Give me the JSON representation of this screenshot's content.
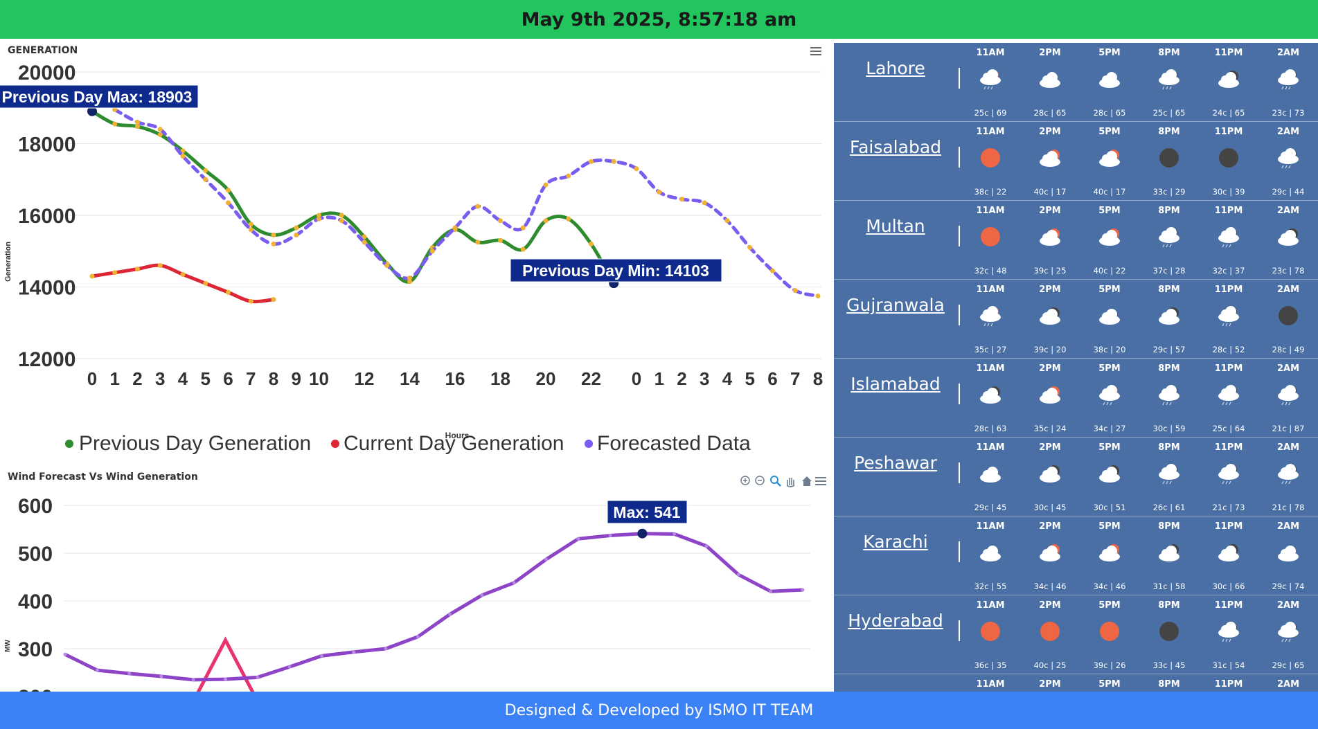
{
  "header": {
    "datetime": "May 9th 2025, 8:57:18 am"
  },
  "footer": {
    "text": "Designed & Developed by ISMO IT TEAM"
  },
  "generation_chart": {
    "title": "GENERATION",
    "ylabel": "Generation",
    "xlabel": "Hours",
    "legend": [
      "Previous Day Generation",
      "Current Day Generation",
      "Forecasted Data"
    ],
    "max_label": "Previous Day Max: 18903",
    "min_label": "Previous Day Min: 14103",
    "menu_icon": "hamburger-menu-icon"
  },
  "wind_chart": {
    "title": "Wind Forecast Vs Wind Generation",
    "ylabel": "MW",
    "max_label": "Max: 541",
    "toolbar_icons": [
      "zoom-in-icon",
      "zoom-out-icon",
      "selection-zoom-icon",
      "pan-icon",
      "home-reset-icon",
      "hamburger-menu-icon"
    ]
  },
  "chart_data": [
    {
      "type": "line",
      "title": "GENERATION",
      "xlabel": "Hours",
      "ylabel": "Generation",
      "ylim": [
        12000,
        20000
      ],
      "yticks": [
        20000,
        18000,
        16000,
        14000,
        12000
      ],
      "xticks": [
        "0",
        "1",
        "2",
        "3",
        "4",
        "5",
        "6",
        "7",
        "8",
        "9",
        "10",
        "12",
        "14",
        "16",
        "18",
        "20",
        "22",
        "0",
        "1",
        "2",
        "3",
        "4",
        "5",
        "6",
        "7",
        "8"
      ],
      "legend_position": "bottom",
      "series": [
        {
          "name": "Previous Day Generation",
          "color": "#2e8b2e",
          "dash": false,
          "x": [
            0,
            1,
            2,
            3,
            4,
            5,
            6,
            7,
            8,
            9,
            10,
            11,
            12,
            13,
            14,
            15,
            16,
            17,
            18,
            19,
            20,
            21,
            22,
            23
          ],
          "values": [
            18903,
            18550,
            18480,
            18250,
            17800,
            17250,
            16700,
            15750,
            15450,
            15650,
            16000,
            16000,
            15400,
            14650,
            14150,
            15100,
            15600,
            15250,
            15300,
            15050,
            15850,
            15900,
            15200,
            14103
          ]
        },
        {
          "name": "Current Day Generation",
          "color": "#dc2636",
          "dash": false,
          "x": [
            0,
            1,
            2,
            3,
            4,
            5,
            6,
            7,
            8
          ],
          "values": [
            14300,
            14400,
            14500,
            14600,
            14350,
            14100,
            13850,
            13600,
            13650
          ]
        },
        {
          "name": "Forecasted Data",
          "color": "#7b5cf0",
          "dash": true,
          "x": [
            1,
            2,
            3,
            4,
            5,
            6,
            7,
            8,
            9,
            10,
            11,
            12,
            13,
            14,
            15,
            16,
            17,
            18,
            19,
            20,
            21,
            22,
            23,
            24,
            25,
            26,
            27,
            28,
            29,
            30,
            31,
            32
          ],
          "values": [
            18950,
            18600,
            18400,
            17650,
            17000,
            16350,
            15600,
            15200,
            15450,
            15900,
            15850,
            15250,
            14600,
            14250,
            15000,
            15650,
            16250,
            15850,
            15650,
            16850,
            17100,
            17500,
            17500,
            17300,
            16650,
            16450,
            16350,
            15850,
            15100,
            14450,
            13900,
            13750
          ]
        }
      ],
      "annotations": [
        {
          "text": "Previous Day Max: 18903",
          "x": 0,
          "y": 18903
        },
        {
          "text": "Previous Day Min: 14103",
          "x": 23,
          "y": 14103
        }
      ]
    },
    {
      "type": "line",
      "title": "Wind Forecast Vs Wind Generation",
      "ylabel": "MW",
      "ylim": [
        200,
        600
      ],
      "yticks": [
        600,
        500,
        400,
        300,
        200
      ],
      "series": [
        {
          "name": "Wind Forecast",
          "color": "#8e44c7",
          "x": [
            0,
            1,
            2,
            3,
            4,
            5,
            6,
            7,
            8,
            9,
            10,
            11,
            12,
            13,
            14,
            15,
            16,
            17,
            18,
            19,
            20,
            21,
            22,
            23,
            24
          ],
          "values": [
            288,
            255,
            248,
            242,
            235,
            236,
            240,
            262,
            285,
            293,
            300,
            325,
            372,
            412,
            438,
            487,
            530,
            537,
            541,
            540,
            515,
            455,
            420,
            423,
            null
          ]
        },
        {
          "name": "Wind Generation",
          "color": "#e8336b",
          "x": [
            4,
            5,
            6
          ],
          "values": [
            190,
            318,
            190
          ]
        }
      ],
      "annotations": [
        {
          "text": "Max: 541",
          "x": 18,
          "y": 541
        }
      ]
    }
  ],
  "weather": {
    "slot_times": [
      "11AM",
      "2PM",
      "5PM",
      "8PM",
      "11PM",
      "2AM"
    ],
    "cities": [
      {
        "name": "Lahore",
        "slots": [
          {
            "icon": "rain-sun-icon",
            "val": "25c | 69"
          },
          {
            "icon": "cloud-icon",
            "val": "28c | 65"
          },
          {
            "icon": "cloud-icon",
            "val": "28c | 65"
          },
          {
            "icon": "rain-moon-icon",
            "val": "25c | 65"
          },
          {
            "icon": "cloud-moon-icon",
            "val": "24c | 65"
          },
          {
            "icon": "rain-moon-icon",
            "val": "23c | 73"
          }
        ]
      },
      {
        "name": "Faisalabad",
        "slots": [
          {
            "icon": "sun-icon",
            "val": "38c | 22"
          },
          {
            "icon": "cloud-sun-icon",
            "val": "40c | 17"
          },
          {
            "icon": "cloud-sun-icon",
            "val": "40c | 17"
          },
          {
            "icon": "moon-icon",
            "val": "33c | 29"
          },
          {
            "icon": "moon-icon",
            "val": "30c | 39"
          },
          {
            "icon": "rain-moon-icon",
            "val": "29c | 44"
          }
        ]
      },
      {
        "name": "Multan",
        "slots": [
          {
            "icon": "sun-icon",
            "val": "32c | 48"
          },
          {
            "icon": "cloud-sun-icon",
            "val": "39c | 25"
          },
          {
            "icon": "cloud-sun-icon",
            "val": "40c | 22"
          },
          {
            "icon": "rain-moon-icon",
            "val": "37c | 28"
          },
          {
            "icon": "rain-moon-icon",
            "val": "32c | 37"
          },
          {
            "icon": "cloud-moon-icon",
            "val": "23c | 78"
          }
        ]
      },
      {
        "name": "Gujranwala",
        "slots": [
          {
            "icon": "rain-sun-icon",
            "val": "35c | 27"
          },
          {
            "icon": "cloud-moon-icon",
            "val": "39c | 20"
          },
          {
            "icon": "cloud-icon",
            "val": "38c | 20"
          },
          {
            "icon": "cloud-moon-icon",
            "val": "29c | 57"
          },
          {
            "icon": "rain-moon-icon",
            "val": "28c | 52"
          },
          {
            "icon": "moon-icon",
            "val": "28c | 49"
          }
        ]
      },
      {
        "name": "Islamabad",
        "slots": [
          {
            "icon": "cloud-moon-icon",
            "val": "28c | 63"
          },
          {
            "icon": "cloud-sun-icon",
            "val": "35c | 24"
          },
          {
            "icon": "rain-sun-icon",
            "val": "34c | 27"
          },
          {
            "icon": "rain-moon-icon",
            "val": "30c | 59"
          },
          {
            "icon": "rain-moon-icon",
            "val": "25c | 64"
          },
          {
            "icon": "rain-moon-icon",
            "val": "21c | 87"
          }
        ]
      },
      {
        "name": "Peshawar",
        "slots": [
          {
            "icon": "cloud-icon",
            "val": "29c | 45"
          },
          {
            "icon": "cloud-moon-icon",
            "val": "30c | 45"
          },
          {
            "icon": "cloud-moon-icon",
            "val": "30c | 51"
          },
          {
            "icon": "rain-moon-icon",
            "val": "26c | 61"
          },
          {
            "icon": "rain-moon-icon",
            "val": "21c | 73"
          },
          {
            "icon": "rain-moon-icon",
            "val": "21c | 78"
          }
        ]
      },
      {
        "name": "Karachi",
        "slots": [
          {
            "icon": "cloud-icon",
            "val": "32c | 55"
          },
          {
            "icon": "cloud-sun-icon",
            "val": "34c | 46"
          },
          {
            "icon": "cloud-sun-icon",
            "val": "34c | 46"
          },
          {
            "icon": "cloud-moon-icon",
            "val": "31c | 58"
          },
          {
            "icon": "cloud-moon-icon",
            "val": "30c | 66"
          },
          {
            "icon": "cloud-icon",
            "val": "29c | 74"
          }
        ]
      },
      {
        "name": "Hyderabad",
        "slots": [
          {
            "icon": "sun-icon",
            "val": "36c | 35"
          },
          {
            "icon": "sun-icon",
            "val": "40c | 25"
          },
          {
            "icon": "sun-icon",
            "val": "39c | 26"
          },
          {
            "icon": "moon-icon",
            "val": "33c | 45"
          },
          {
            "icon": "rain-moon-icon",
            "val": "31c | 54"
          },
          {
            "icon": "rain-moon-icon",
            "val": "29c | 65"
          }
        ]
      },
      {
        "name": "",
        "slots": [
          {
            "icon": "",
            "val": ""
          },
          {
            "icon": "",
            "val": ""
          },
          {
            "icon": "",
            "val": ""
          },
          {
            "icon": "",
            "val": ""
          },
          {
            "icon": "",
            "val": ""
          },
          {
            "icon": "",
            "val": ""
          }
        ]
      }
    ]
  }
}
